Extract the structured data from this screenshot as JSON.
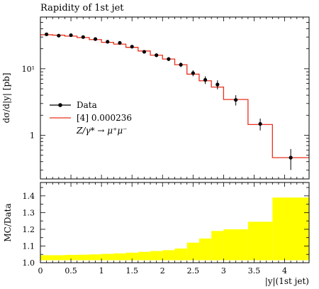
{
  "title": "Rapidity of 1st jet",
  "colors": {
    "data": "#000000",
    "mc": "#e8301c",
    "ratio_fill": "#ffff00"
  },
  "chart_data": [
    {
      "type": "line",
      "panel": "main",
      "ylabel": "dσ/d|y| [pb]",
      "yscale": "log",
      "ylim": [
        0.22,
        60
      ],
      "xlim": [
        0,
        4.4
      ],
      "xticks": [
        0,
        0.5,
        1,
        1.5,
        2,
        2.5,
        3,
        3.5,
        4
      ],
      "xtick_labels": [
        "0",
        "0.5",
        "1",
        "1.5",
        "2",
        "2.5",
        "3",
        "3.5",
        "4"
      ],
      "yticks": [
        1,
        10
      ],
      "ytick_labels": [
        "1",
        "10¹"
      ],
      "legend": {
        "position": "middle-left",
        "entries": [
          "Data",
          "[4] 0.000236",
          "Z/γ* → μ⁺μ⁻"
        ]
      },
      "bin_edges": [
        0,
        0.2,
        0.4,
        0.6,
        0.8,
        1.0,
        1.2,
        1.4,
        1.6,
        1.8,
        2.0,
        2.2,
        2.4,
        2.6,
        2.8,
        3.0,
        3.4,
        3.8,
        4.4
      ],
      "series": [
        {
          "name": "Data",
          "x": [
            0.1,
            0.3,
            0.5,
            0.7,
            0.9,
            1.1,
            1.3,
            1.5,
            1.7,
            1.9,
            2.1,
            2.3,
            2.5,
            2.7,
            2.9,
            3.2,
            3.6,
            4.1
          ],
          "y": [
            33,
            31.5,
            32,
            30,
            28,
            25.5,
            24.5,
            21.5,
            18,
            16,
            14,
            11.5,
            8.6,
            6.8,
            5.8,
            3.4,
            1.48,
            0.46
          ],
          "yerr": [
            1.5,
            1.5,
            1.5,
            1.4,
            1.3,
            1.2,
            1.2,
            1.1,
            1.0,
            1.0,
            0.9,
            0.9,
            0.9,
            0.9,
            0.9,
            0.6,
            0.3,
            0.16
          ]
        },
        {
          "name": "[4] 0.000236",
          "values": [
            32.5,
            32,
            31,
            29.5,
            27.5,
            25,
            23.5,
            21,
            18.5,
            16,
            14,
            11.5,
            8.3,
            6.6,
            5.3,
            3.45,
            1.45,
            0.46
          ]
        }
      ]
    },
    {
      "type": "bar",
      "panel": "ratio",
      "ylabel": "MC/Data",
      "xlabel": "|y|(1st jet)",
      "ylim": [
        1.0,
        1.48
      ],
      "yticks": [
        1.0,
        1.1,
        1.2,
        1.3,
        1.4
      ],
      "ytick_labels": [
        "1.0",
        "1.1",
        "1.2",
        "1.3",
        "1.4"
      ],
      "bin_edges": [
        0,
        0.2,
        0.4,
        0.6,
        0.8,
        1.0,
        1.2,
        1.4,
        1.6,
        1.8,
        2.0,
        2.2,
        2.4,
        2.6,
        2.8,
        3.0,
        3.4,
        3.8,
        4.4
      ],
      "lower": [
        1.015,
        1.015,
        1.015,
        1.015,
        1.015,
        1.015,
        1.015,
        1.015,
        1.015,
        1.015,
        1.015,
        1.015,
        1.015,
        1.015,
        1.015,
        1.015,
        1.015,
        1.015
      ],
      "upper": [
        1.045,
        1.045,
        1.047,
        1.048,
        1.05,
        1.053,
        1.056,
        1.06,
        1.065,
        1.07,
        1.075,
        1.085,
        1.12,
        1.145,
        1.19,
        1.2,
        1.245,
        1.39
      ]
    }
  ]
}
